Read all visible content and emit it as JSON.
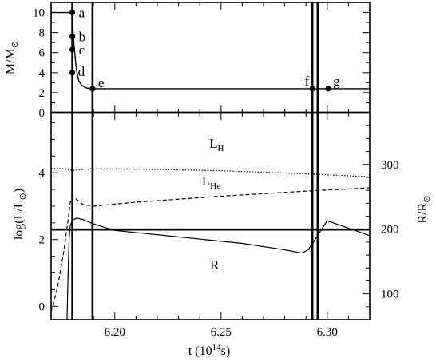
{
  "chart_data": [
    {
      "panel": "top",
      "type": "line",
      "ylabel_main": "M/M",
      "ylabel_sub": "⊙",
      "xlim": [
        6.17,
        6.32
      ],
      "ylim": [
        0,
        11
      ],
      "yticks": [
        0,
        2,
        4,
        6,
        8,
        10
      ],
      "series": [
        {
          "x": [
            6.17,
            6.18,
            6.1802,
            6.1805,
            6.181,
            6.1816,
            6.1822,
            6.183,
            6.1845,
            6.187,
            6.19,
            6.21,
            6.25,
            6.29,
            6.32
          ],
          "y": [
            10.0,
            10.0,
            8.6,
            7.5,
            6.3,
            4.9,
            4.0,
            3.2,
            2.7,
            2.45,
            2.4,
            2.4,
            2.4,
            2.4,
            2.4
          ]
        }
      ],
      "points": [
        {
          "label": "a",
          "x": 6.18,
          "y": 10.0
        },
        {
          "label": "b",
          "x": 6.18,
          "y": 7.6
        },
        {
          "label": "c",
          "x": 6.18,
          "y": 6.3
        },
        {
          "label": "d",
          "x": 6.18,
          "y": 4.0
        },
        {
          "label": "e",
          "x": 6.1895,
          "y": 2.4
        },
        {
          "label": "f",
          "x": 6.293,
          "y": 2.4
        },
        {
          "label": "g",
          "x": 6.3005,
          "y": 2.4
        }
      ],
      "vlines": [
        6.18,
        6.1895,
        6.293,
        6.2955
      ]
    },
    {
      "panel": "bottom",
      "type": "line",
      "xlabel_main": "t  (10",
      "xlabel_exp": "14",
      "xlabel_end": "s)",
      "ylabel_left_main": "log(L/L",
      "ylabel_left_sub": "⊙",
      "ylabel_left_end": ")",
      "ylabel_right_main": "R/R",
      "ylabel_right_sub": "⊙",
      "xlim": [
        6.17,
        6.32
      ],
      "ylim": [
        -0.4,
        5.8
      ],
      "xticks": [
        "6.20",
        "6.25",
        "6.30"
      ],
      "xtick_values": [
        6.2,
        6.25,
        6.3
      ],
      "yticks_left": [
        0,
        2,
        4
      ],
      "right_axis": {
        "ylim": [
          60,
          380
        ],
        "ticks": [
          100,
          200,
          300
        ]
      },
      "hline": 2.3,
      "vlines": [
        6.18,
        6.1895,
        6.293,
        6.2955
      ],
      "series": [
        {
          "name": "L",
          "name_sub": "H",
          "style": "dotted",
          "axis": "left",
          "label_at": [
            6.2445,
            4.75
          ],
          "x": [
            6.17,
            6.175,
            6.178,
            6.18,
            6.185,
            6.19,
            6.21,
            6.25,
            6.29,
            6.3,
            6.32
          ],
          "y": [
            4.13,
            4.12,
            4.1,
            4.07,
            4.1,
            4.12,
            4.11,
            4.06,
            3.97,
            3.94,
            3.88
          ]
        },
        {
          "name": "L",
          "name_sub": "He",
          "style": "dashed",
          "axis": "left",
          "label_at": [
            6.241,
            3.62
          ],
          "x": [
            6.17,
            6.173,
            6.176,
            6.178,
            6.179,
            6.18,
            6.182,
            6.185,
            6.19,
            6.21,
            6.25,
            6.29,
            6.32
          ],
          "y": [
            -0.15,
            0.55,
            1.65,
            2.6,
            3.1,
            3.3,
            3.2,
            3.05,
            3.0,
            3.12,
            3.3,
            3.45,
            3.55
          ]
        },
        {
          "name": "R",
          "style": "solid",
          "axis": "right",
          "label_at": [
            6.2448,
            138
          ],
          "x": [
            6.1775,
            6.178,
            6.1785,
            6.179,
            6.18,
            6.182,
            6.185,
            6.19,
            6.2,
            6.23,
            6.26,
            6.28,
            6.288,
            6.291,
            6.2935,
            6.3,
            6.32
          ],
          "y": [
            60,
            130,
            185,
            205,
            214,
            217,
            215,
            208,
            198,
            188,
            178,
            168,
            163,
            168,
            180,
            213,
            190
          ]
        }
      ]
    }
  ]
}
